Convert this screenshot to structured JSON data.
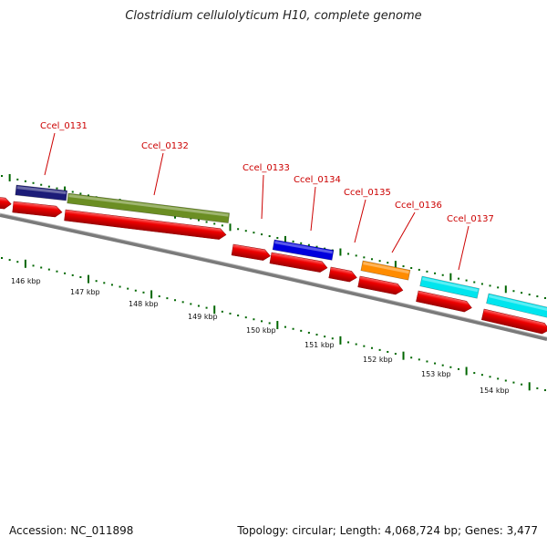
{
  "title": "Clostridium cellulolyticum H10, complete genome",
  "footer": {
    "accession": "Accession: NC_011898",
    "summary": "Topology: circular; Length: 4,068,724 bp; Genes: 3,477"
  },
  "colors": {
    "gene_label": "#cc0000",
    "cds": "#ee0000",
    "backbone": "#808080",
    "ticks": "#006600"
  },
  "genes": [
    {
      "name": "Ccel_0131",
      "color": "#1c1c78"
    },
    {
      "name": "Ccel_0132",
      "color": "#6b8e23"
    },
    {
      "name": "Ccel_0133",
      "color": null
    },
    {
      "name": "Ccel_0134",
      "color": "#0000dd"
    },
    {
      "name": "Ccel_0135",
      "color": null
    },
    {
      "name": "Ccel_0136",
      "color": "#ff8c00"
    },
    {
      "name": "Ccel_0137",
      "color": "#00e5ee"
    }
  ],
  "kbp_ticks": [
    "146 kbp",
    "147 kbp",
    "148 kbp",
    "149 kbp",
    "150 kbp",
    "151 kbp",
    "152 kbp",
    "153 kbp",
    "154 kbp"
  ]
}
